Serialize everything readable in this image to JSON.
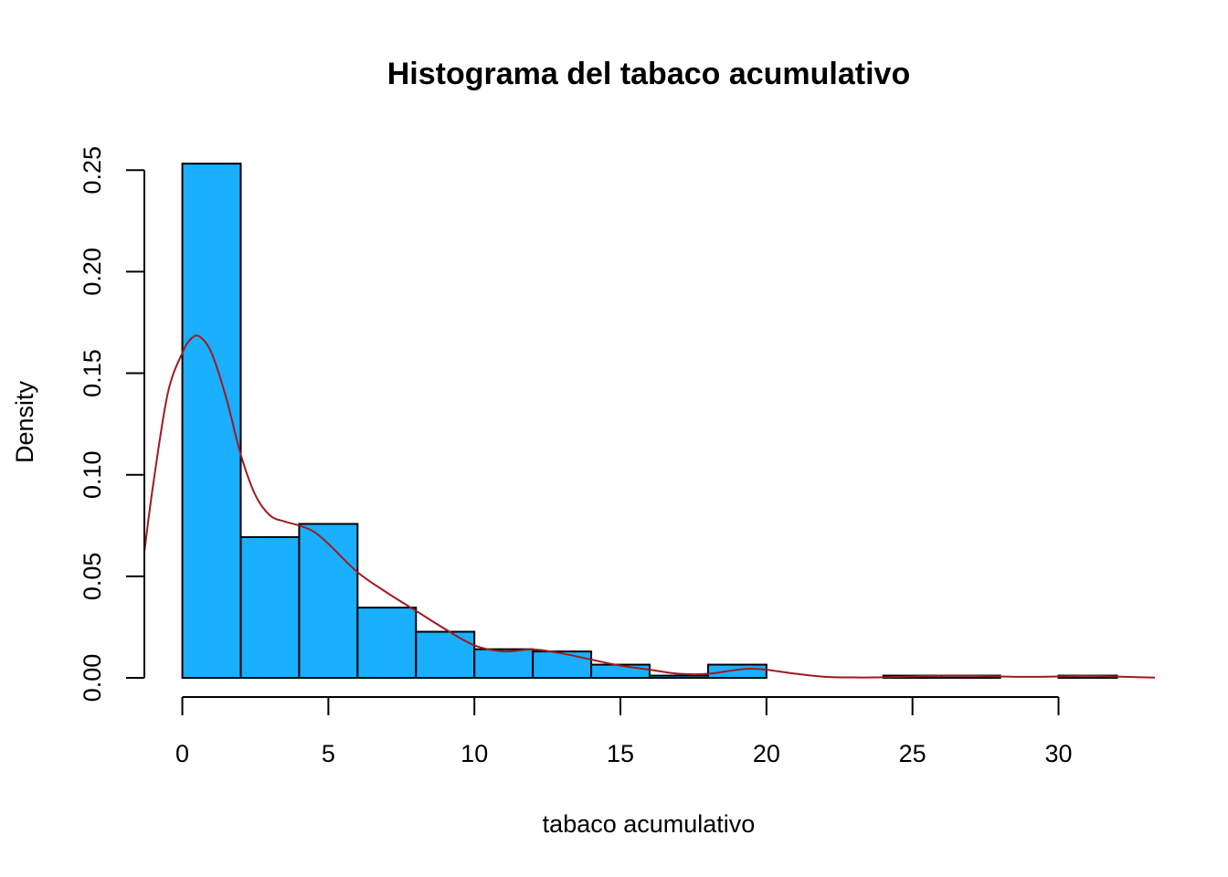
{
  "chart_data": {
    "type": "bar",
    "title": "Histograma del tabaco acumulativo",
    "xlabel": "tabaco acumulativo",
    "ylabel": "Density",
    "bin_edges": [
      0,
      2,
      4,
      6,
      8,
      10,
      12,
      14,
      16,
      18,
      20,
      22,
      24,
      26,
      28,
      30,
      32
    ],
    "values": [
      0.2532,
      0.0693,
      0.0758,
      0.0346,
      0.0227,
      0.0141,
      0.013,
      0.0065,
      0.0011,
      0.0065,
      0.0,
      0.0,
      0.0011,
      0.0011,
      0.0,
      0.0011
    ],
    "xlim": [
      -1.3,
      33.3
    ],
    "ylim": [
      0,
      0.26
    ],
    "xticks": [
      0,
      5,
      10,
      15,
      20,
      25,
      30
    ],
    "xtick_labels": [
      "0",
      "5",
      "10",
      "15",
      "20",
      "25",
      "30"
    ],
    "yticks": [
      0.0,
      0.05,
      0.1,
      0.15,
      0.2,
      0.25
    ],
    "ytick_labels": [
      "0.00",
      "0.05",
      "0.10",
      "0.15",
      "0.20",
      "0.25"
    ],
    "bar_color": "#1aafff",
    "density_line": {
      "color": "#a01a1f",
      "x": [
        -1.3,
        -1.0,
        -0.5,
        0.0,
        0.3,
        0.6,
        1.0,
        1.5,
        2.0,
        2.5,
        3.0,
        3.5,
        4.0,
        4.5,
        5.0,
        6.0,
        7.0,
        8.0,
        9.0,
        10.0,
        11.0,
        12.0,
        13.0,
        14.0,
        15.0,
        16.0,
        17.0,
        18.0,
        19.0,
        19.5,
        20.0,
        21.0,
        22.0,
        23.0,
        24.0,
        25.0,
        26.0,
        27.0,
        28.0,
        29.0,
        30.0,
        31.0,
        32.0,
        33.3
      ],
      "y": [
        0.062,
        0.095,
        0.14,
        0.16,
        0.167,
        0.168,
        0.16,
        0.138,
        0.11,
        0.09,
        0.08,
        0.077,
        0.075,
        0.072,
        0.066,
        0.052,
        0.042,
        0.033,
        0.024,
        0.016,
        0.013,
        0.014,
        0.012,
        0.009,
        0.006,
        0.004,
        0.002,
        0.002,
        0.004,
        0.0045,
        0.004,
        0.002,
        0.0005,
        0.0002,
        0.0003,
        0.0007,
        0.001,
        0.001,
        0.0007,
        0.0005,
        0.0007,
        0.001,
        0.0006,
        0.0001
      ]
    }
  }
}
